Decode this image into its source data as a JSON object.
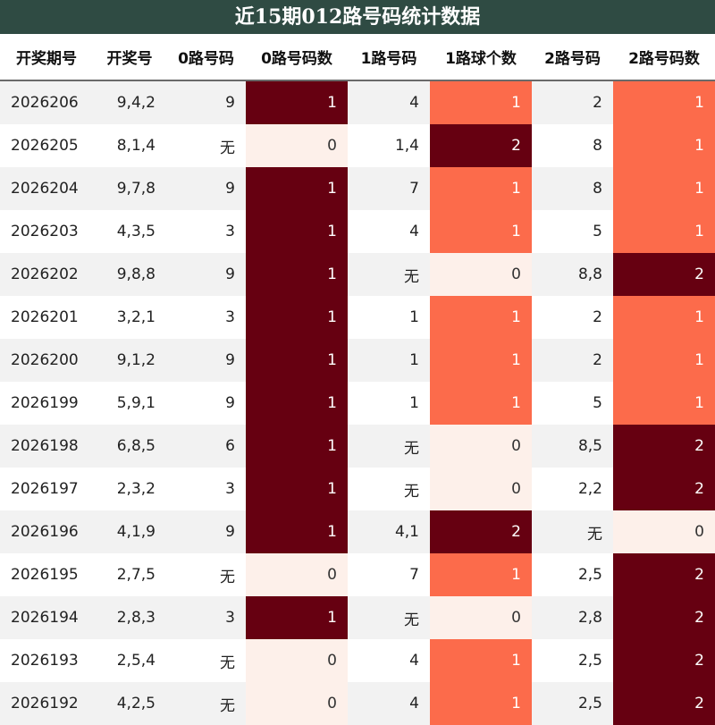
{
  "title": "近15期012路号码统计数据",
  "colors": {
    "header_bg": "#2f4b43",
    "count_0": "#fdf0ea",
    "count_1_light": "#fc6b4b",
    "count_max": "#660011"
  },
  "chart_data": {
    "type": "table",
    "columns": [
      "开奖期号",
      "开奖号",
      "0路号码",
      "0路号码数",
      "1路号码",
      "1路球个数",
      "2路号码",
      "2路号码数"
    ],
    "rows": [
      [
        "2026206",
        "9,4,2",
        "9",
        1,
        "4",
        1,
        "2",
        1
      ],
      [
        "2026205",
        "8,1,4",
        "无",
        0,
        "1,4",
        2,
        "8",
        1
      ],
      [
        "2026204",
        "9,7,8",
        "9",
        1,
        "7",
        1,
        "8",
        1
      ],
      [
        "2026203",
        "4,3,5",
        "3",
        1,
        "4",
        1,
        "5",
        1
      ],
      [
        "2026202",
        "9,8,8",
        "9",
        1,
        "无",
        0,
        "8,8",
        2
      ],
      [
        "2026201",
        "3,2,1",
        "3",
        1,
        "1",
        1,
        "2",
        1
      ],
      [
        "2026200",
        "9,1,2",
        "9",
        1,
        "1",
        1,
        "2",
        1
      ],
      [
        "2026199",
        "5,9,1",
        "9",
        1,
        "1",
        1,
        "5",
        1
      ],
      [
        "2026198",
        "6,8,5",
        "6",
        1,
        "无",
        0,
        "8,5",
        2
      ],
      [
        "2026197",
        "2,3,2",
        "3",
        1,
        "无",
        0,
        "2,2",
        2
      ],
      [
        "2026196",
        "4,1,9",
        "9",
        1,
        "4,1",
        2,
        "无",
        0
      ],
      [
        "2026195",
        "2,7,5",
        "无",
        0,
        "7",
        1,
        "2,5",
        2
      ],
      [
        "2026194",
        "2,8,3",
        "3",
        1,
        "无",
        0,
        "2,8",
        2
      ],
      [
        "2026193",
        "2,5,4",
        "无",
        0,
        "4",
        1,
        "2,5",
        2
      ],
      [
        "2026192",
        "4,2,5",
        "无",
        0,
        "4",
        1,
        "2,5",
        2
      ]
    ]
  }
}
